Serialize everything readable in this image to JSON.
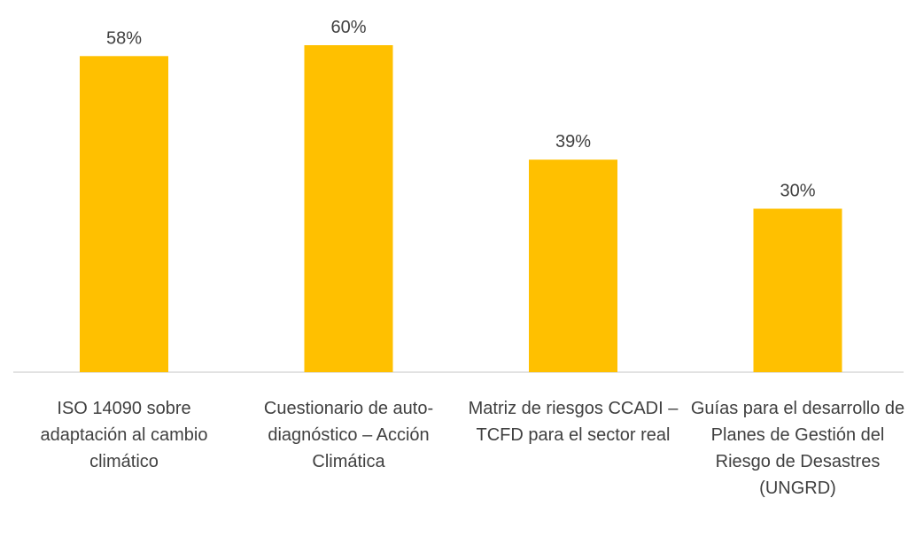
{
  "chart_data": {
    "type": "bar",
    "categories": [
      "ISO 14090 sobre adaptación al cambio climático",
      "Cuestionario de auto-diagnóstico – Acción Climática",
      "Matriz de riesgos CCADI – TCFD para el sector real",
      "Guías para el desarrollo de Planes de Gestión del Riesgo de Desastres (UNGRD)"
    ],
    "values": [
      58,
      60,
      39,
      30
    ],
    "value_labels": [
      "58%",
      "60%",
      "39%",
      "30%"
    ],
    "color": "#ffc000"
  }
}
